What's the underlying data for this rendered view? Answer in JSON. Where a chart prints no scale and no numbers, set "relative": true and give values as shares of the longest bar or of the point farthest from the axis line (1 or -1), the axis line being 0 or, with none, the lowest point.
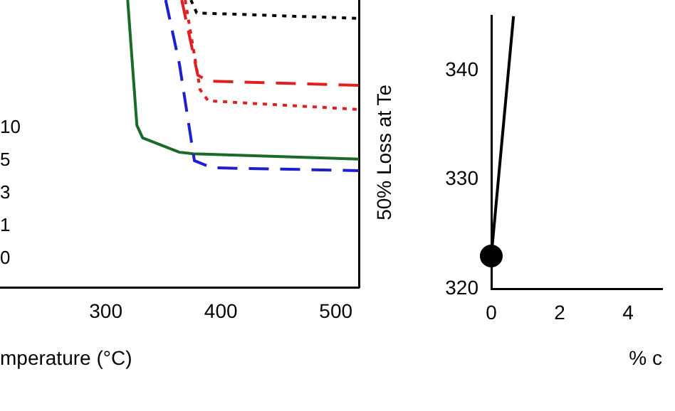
{
  "chart_data": [
    {
      "type": "line",
      "relative": true,
      "xlabel": "mperature (°C)",
      "xlim": [
        208,
        520
      ],
      "xticks": [
        300,
        400,
        500
      ],
      "grid": false,
      "legend": false,
      "annotations": [
        "10",
        "5",
        "3",
        "1",
        "0"
      ],
      "series": [
        {
          "color": "#000000",
          "line_style": "dotted",
          "x": [
            374,
            379,
            520
          ],
          "values": [
            1,
            0.955,
            0.936
          ]
        },
        {
          "color": "#e02020",
          "line_style": "dashed",
          "x": [
            366,
            380,
            389,
            520
          ],
          "values": [
            1,
            0.738,
            0.718,
            0.703
          ]
        },
        {
          "color": "#e02020",
          "line_style": "dotted",
          "x": [
            369,
            382,
            389,
            520
          ],
          "values": [
            1,
            0.688,
            0.649,
            0.619
          ]
        },
        {
          "color": "#1f1fd0",
          "line_style": "dashed",
          "x": [
            352,
            364,
            377,
            392,
            520
          ],
          "values": [
            1,
            0.777,
            0.441,
            0.416,
            0.406
          ]
        },
        {
          "color": "#1a6b2a",
          "line_style": "solid",
          "x": [
            319,
            327,
            332,
            364,
            376,
            520
          ],
          "values": [
            1,
            0.564,
            0.52,
            0.47,
            0.465,
            0.446
          ]
        }
      ]
    },
    {
      "type": "line",
      "xlabel": "% c",
      "ylabel": "50% Loss at Te",
      "xlim": [
        0,
        5
      ],
      "xticks": [
        0,
        2,
        4
      ],
      "ylim": [
        320,
        345
      ],
      "yticks": [
        320,
        330,
        340
      ],
      "grid": false,
      "legend": false,
      "series": [
        {
          "type": "line",
          "color": "#000000",
          "marker": "none",
          "line_style": "solid",
          "x": [
            0,
            0.65
          ],
          "values": [
            323,
            345
          ]
        },
        {
          "type": "scatter",
          "color": "#000000",
          "marker": "circle",
          "x": [
            0
          ],
          "values": [
            323
          ]
        }
      ]
    }
  ]
}
